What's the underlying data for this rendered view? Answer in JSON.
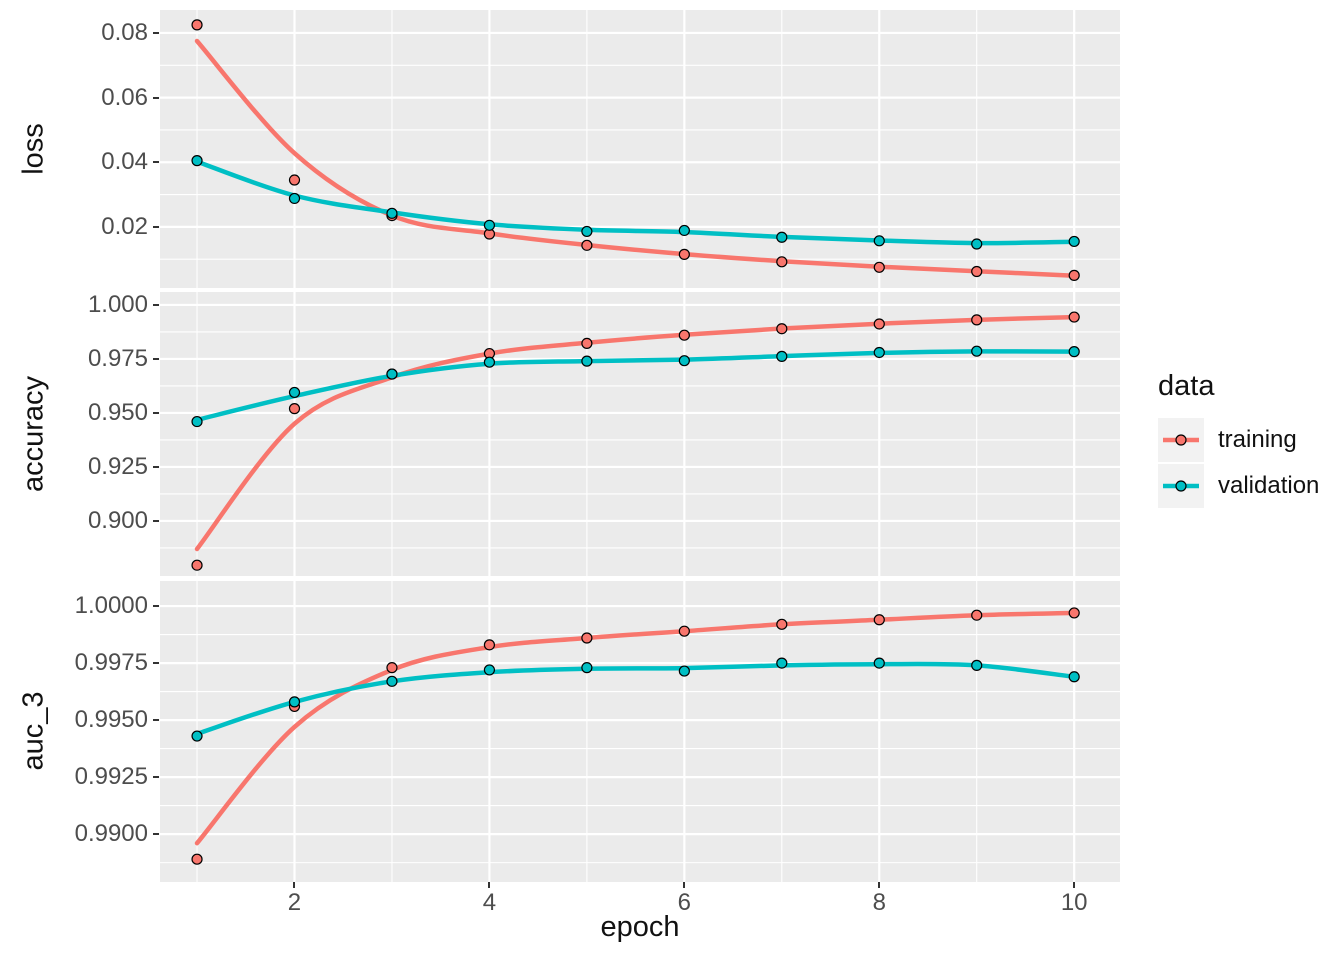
{
  "palette": {
    "training": "#F8766D",
    "validation": "#00BFC4",
    "panel_bg": "#EBEBEB",
    "grid_major": "#FFFFFF",
    "grid_minor": "#FFFFFF",
    "tick_text": "#4D4D4D",
    "point_stroke": "#000000"
  },
  "xaxis": {
    "label": "epoch",
    "xlim": [
      0.62,
      10.47
    ],
    "ticks": [
      2,
      4,
      6,
      8,
      10
    ],
    "tick_labels": [
      "2",
      "4",
      "6",
      "8",
      "10"
    ],
    "minor_ticks": [
      1,
      3,
      5,
      7,
      9
    ]
  },
  "legend": {
    "title": "data",
    "items": [
      {
        "label": "training",
        "color": "#F8766D"
      },
      {
        "label": "validation",
        "color": "#00BFC4"
      }
    ]
  },
  "chart_data": [
    {
      "type": "line",
      "facet": "loss",
      "ylabel": "loss",
      "x": [
        1,
        2,
        3,
        4,
        5,
        6,
        7,
        8,
        9,
        10
      ],
      "ylim": [
        0.0011,
        0.0871
      ],
      "yticks": [
        0.02,
        0.04,
        0.06,
        0.08
      ],
      "ytick_labels": [
        "0.02",
        "0.04",
        "0.06",
        "0.08"
      ],
      "series": [
        {
          "name": "training",
          "color": "#F8766D",
          "points": [
            0.0825,
            0.0345,
            0.0235,
            0.0178,
            0.0143,
            0.0115,
            0.0092,
            0.0075,
            0.0062,
            0.005
          ],
          "smooth": [
            0.0775,
            0.0428,
            0.0235,
            0.018,
            0.0144,
            0.0116,
            0.0094,
            0.0077,
            0.0063,
            0.0049
          ]
        },
        {
          "name": "validation",
          "color": "#00BFC4",
          "points": [
            0.0405,
            0.0288,
            0.0242,
            0.0205,
            0.0186,
            0.0189,
            0.0168,
            0.0157,
            0.0147,
            0.0155
          ],
          "smooth": [
            0.0402,
            0.0297,
            0.0245,
            0.0208,
            0.0191,
            0.0184,
            0.0169,
            0.0158,
            0.015,
            0.0154
          ]
        }
      ]
    },
    {
      "type": "line",
      "facet": "accuracy",
      "ylabel": "accuracy",
      "x": [
        1,
        2,
        3,
        4,
        5,
        6,
        7,
        8,
        9,
        10
      ],
      "ylim": [
        0.8745,
        1.006
      ],
      "yticks": [
        0.9,
        0.925,
        0.95,
        0.975,
        1.0
      ],
      "ytick_labels": [
        "0.900",
        "0.925",
        "0.950",
        "0.975",
        "1.000"
      ],
      "series": [
        {
          "name": "training",
          "color": "#F8766D",
          "points": [
            0.8795,
            0.952,
            0.968,
            0.9775,
            0.9822,
            0.986,
            0.989,
            0.9912,
            0.9931,
            0.9944
          ],
          "smooth": [
            0.887,
            0.945,
            0.9665,
            0.9775,
            0.9825,
            0.9862,
            0.9891,
            0.9913,
            0.9931,
            0.9944
          ]
        },
        {
          "name": "validation",
          "color": "#00BFC4",
          "points": [
            0.946,
            0.9595,
            0.968,
            0.9735,
            0.974,
            0.9742,
            0.9762,
            0.978,
            0.9786,
            0.9784
          ],
          "smooth": [
            0.9468,
            0.9578,
            0.9672,
            0.9728,
            0.974,
            0.9747,
            0.9763,
            0.9778,
            0.9785,
            0.9784
          ]
        }
      ]
    },
    {
      "type": "line",
      "facet": "auc_3",
      "ylabel": "auc_3",
      "x": [
        1,
        2,
        3,
        4,
        5,
        6,
        7,
        8,
        9,
        10
      ],
      "ylim": [
        0.9879,
        1.0011
      ],
      "yticks": [
        0.99,
        0.9925,
        0.995,
        0.9975,
        1.0
      ],
      "ytick_labels": [
        "0.9900",
        "0.9925",
        "0.9950",
        "0.9975",
        "1.0000"
      ],
      "series": [
        {
          "name": "training",
          "color": "#F8766D",
          "points": [
            0.9889,
            0.9956,
            0.9973,
            0.9983,
            0.9986,
            0.9989,
            0.9992,
            0.9994,
            0.9996,
            0.9997
          ],
          "smooth": [
            0.9896,
            0.9947,
            0.9972,
            0.9982,
            0.9986,
            0.9989,
            0.9992,
            0.9994,
            0.9996,
            0.9997
          ]
        },
        {
          "name": "validation",
          "color": "#00BFC4",
          "points": [
            0.9943,
            0.9958,
            0.9967,
            0.9972,
            0.9973,
            0.99715,
            0.9975,
            0.9975,
            0.9974,
            0.9969
          ],
          "smooth": [
            0.9944,
            0.9958,
            0.9967,
            0.9971,
            0.99725,
            0.99728,
            0.9974,
            0.99745,
            0.9974,
            0.9969
          ]
        }
      ]
    }
  ]
}
